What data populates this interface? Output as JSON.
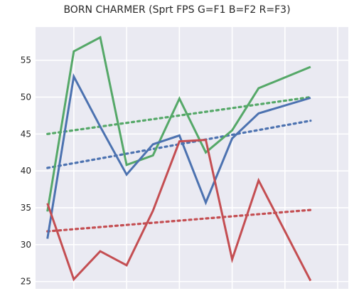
{
  "chart_data": {
    "type": "line",
    "title": "BORN CHARMER (Sprt FPS G=F1 B=F2 R=F3)",
    "xlabel": "",
    "ylabel": "",
    "x": [
      0,
      1,
      2,
      3,
      4,
      5,
      6,
      7,
      8,
      9,
      10,
      11
    ],
    "xlim": [
      -0.45,
      11.4
    ],
    "ylim": [
      24,
      59.5
    ],
    "yticks": [
      25,
      30,
      35,
      40,
      45,
      50,
      55
    ],
    "grid": true,
    "legend": "none",
    "background_color": "#eaeaf2",
    "series": [
      {
        "color": "#55a868",
        "values": [
          34.5,
          56.2,
          58.1,
          40.8,
          42.1,
          49.8,
          42.5,
          45.5,
          51.2,
          54.1
        ],
        "x": [
          0,
          1,
          2,
          3,
          4,
          5,
          6,
          7,
          8,
          9.97
        ],
        "trend": [
          45.0,
          50.0
        ]
      },
      {
        "color": "#4c72b0",
        "values": [
          30.8,
          52.8,
          46.0,
          39.5,
          43.6,
          44.8,
          35.7,
          44.4,
          47.8,
          49.9
        ],
        "x": [
          0,
          1,
          2,
          3,
          4,
          5,
          6,
          7,
          8,
          9.97
        ],
        "trend": [
          40.4,
          46.8
        ]
      },
      {
        "color": "#c44e52",
        "values": [
          35.6,
          25.3,
          29.1,
          27.2,
          34.6,
          44.0,
          44.2,
          28.0,
          38.7,
          25.1
        ],
        "x": [
          0,
          1,
          2,
          3,
          4,
          5,
          6,
          7,
          8,
          9.97
        ],
        "trend": [
          31.8,
          34.7
        ]
      }
    ]
  }
}
